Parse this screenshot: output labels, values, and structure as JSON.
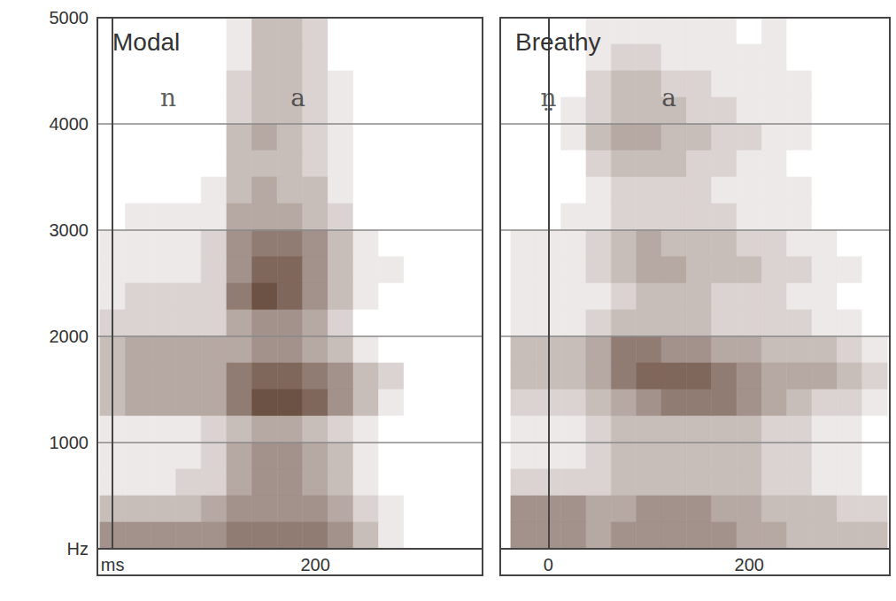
{
  "chart_data": [
    {
      "type": "spectrogram",
      "title": "Modal",
      "annotations": [
        {
          "text": "n",
          "x": 55,
          "y": 4250
        },
        {
          "text": "a",
          "x": 183,
          "y": 4250
        }
      ],
      "xlim": [
        -15,
        365
      ],
      "xticks": [
        {
          "value": 0,
          "label": "ms"
        },
        200
      ],
      "ylim": [
        0,
        5000
      ],
      "yticks": [
        {
          "value": 0,
          "label": "Hz"
        },
        1000,
        2000,
        3000,
        4000,
        5000
      ],
      "grid": true,
      "color": "#5a3b2e",
      "zlim": [
        0,
        9
      ],
      "spectrogram": {
        "time": [
          0,
          25,
          50,
          75,
          100,
          125,
          150,
          175,
          200,
          225,
          250,
          275,
          300,
          325,
          350
        ],
        "frequency": [
          4875,
          4625,
          4375,
          4125,
          3875,
          3625,
          3375,
          3125,
          2875,
          2625,
          2375,
          2125,
          1875,
          1625,
          1375,
          1125,
          875,
          625,
          375,
          125
        ],
        "intensity": [
          [
            0,
            0,
            0,
            0,
            0,
            1,
            3,
            3,
            2,
            0,
            0,
            0,
            0,
            0,
            0
          ],
          [
            0,
            0,
            0,
            0,
            0,
            1,
            3,
            3,
            2,
            0,
            0,
            0,
            0,
            0,
            0
          ],
          [
            0,
            0,
            0,
            0,
            0,
            2,
            3,
            3,
            2,
            1,
            0,
            0,
            0,
            0,
            0
          ],
          [
            0,
            0,
            0,
            0,
            0,
            2,
            3,
            3,
            2,
            1,
            0,
            0,
            0,
            0,
            0
          ],
          [
            0,
            0,
            0,
            0,
            0,
            3,
            4,
            3,
            2,
            1,
            0,
            0,
            0,
            0,
            0
          ],
          [
            0,
            0,
            0,
            0,
            0,
            3,
            3,
            3,
            2,
            1,
            0,
            0,
            0,
            0,
            0
          ],
          [
            0,
            0,
            0,
            0,
            1,
            3,
            4,
            3,
            3,
            1,
            0,
            0,
            0,
            0,
            0
          ],
          [
            0,
            1,
            1,
            1,
            1,
            4,
            4,
            4,
            3,
            2,
            0,
            0,
            0,
            0,
            0
          ],
          [
            1,
            1,
            1,
            1,
            2,
            5,
            6,
            6,
            5,
            3,
            1,
            0,
            0,
            0,
            0
          ],
          [
            1,
            1,
            1,
            1,
            2,
            5,
            7,
            7,
            5,
            3,
            1,
            1,
            0,
            0,
            0
          ],
          [
            1,
            2,
            2,
            2,
            2,
            6,
            8,
            7,
            5,
            3,
            1,
            0,
            0,
            0,
            0
          ],
          [
            2,
            2,
            2,
            2,
            2,
            4,
            5,
            5,
            4,
            2,
            0,
            0,
            0,
            0,
            0
          ],
          [
            3,
            4,
            4,
            4,
            4,
            4,
            5,
            5,
            4,
            3,
            1,
            0,
            0,
            0,
            0
          ],
          [
            3,
            4,
            4,
            4,
            4,
            6,
            7,
            7,
            6,
            5,
            3,
            2,
            0,
            0,
            0
          ],
          [
            3,
            4,
            4,
            4,
            4,
            6,
            8,
            8,
            7,
            5,
            3,
            1,
            0,
            0,
            0
          ],
          [
            1,
            1,
            1,
            1,
            2,
            3,
            4,
            4,
            3,
            2,
            1,
            0,
            0,
            0,
            0
          ],
          [
            1,
            1,
            1,
            1,
            2,
            4,
            5,
            5,
            4,
            3,
            1,
            0,
            0,
            0,
            0
          ],
          [
            1,
            1,
            1,
            2,
            2,
            4,
            5,
            5,
            4,
            3,
            1,
            0,
            0,
            0,
            0
          ],
          [
            3,
            3,
            3,
            3,
            4,
            5,
            5,
            5,
            5,
            4,
            2,
            1,
            0,
            0,
            0
          ],
          [
            5,
            5,
            5,
            5,
            5,
            6,
            6,
            6,
            6,
            5,
            3,
            1,
            0,
            0,
            0
          ]
        ]
      }
    },
    {
      "type": "spectrogram",
      "title": "Breathy",
      "annotations": [
        {
          "text": "n̤",
          "x": 0,
          "y": 4250
        },
        {
          "text": "a",
          "x": 120,
          "y": 4250
        }
      ],
      "xlim": [
        -48,
        340
      ],
      "xticks": [
        0,
        200
      ],
      "ylim": [
        0,
        5000
      ],
      "yticks": [
        {
          "value": 0,
          "label": "Hz"
        },
        1000,
        2000,
        3000,
        4000,
        5000
      ],
      "tick_labels": "x",
      "grid": true,
      "color": "#5a3b2e",
      "zlim": [
        0,
        9
      ],
      "spectrogram": {
        "time": [
          -25,
          0,
          25,
          50,
          75,
          100,
          125,
          150,
          175,
          200,
          225,
          250,
          275,
          300,
          325
        ],
        "frequency": [
          4875,
          4625,
          4375,
          4125,
          3875,
          3625,
          3375,
          3125,
          2875,
          2625,
          2375,
          2125,
          1875,
          1625,
          1375,
          1125,
          875,
          625,
          375,
          125
        ],
        "intensity": [
          [
            0,
            0,
            0,
            1,
            1,
            1,
            1,
            1,
            1,
            0,
            1,
            0,
            0,
            0,
            0
          ],
          [
            0,
            0,
            0,
            1,
            2,
            2,
            1,
            1,
            1,
            1,
            1,
            0,
            0,
            0,
            0
          ],
          [
            0,
            0,
            0,
            2,
            3,
            3,
            2,
            2,
            1,
            1,
            1,
            1,
            0,
            0,
            0
          ],
          [
            0,
            0,
            1,
            2,
            3,
            3,
            3,
            2,
            2,
            1,
            1,
            1,
            0,
            0,
            0
          ],
          [
            0,
            0,
            1,
            3,
            4,
            4,
            3,
            3,
            2,
            2,
            1,
            1,
            0,
            0,
            0
          ],
          [
            0,
            0,
            0,
            2,
            3,
            3,
            3,
            2,
            2,
            1,
            1,
            0,
            0,
            0,
            0
          ],
          [
            0,
            0,
            0,
            1,
            2,
            2,
            2,
            2,
            1,
            1,
            1,
            1,
            0,
            0,
            0
          ],
          [
            0,
            0,
            1,
            1,
            2,
            2,
            2,
            2,
            2,
            1,
            1,
            1,
            0,
            0,
            0
          ],
          [
            1,
            1,
            1,
            2,
            3,
            4,
            3,
            3,
            3,
            2,
            2,
            1,
            1,
            0,
            0
          ],
          [
            1,
            1,
            1,
            2,
            3,
            4,
            4,
            3,
            3,
            3,
            2,
            2,
            1,
            1,
            0
          ],
          [
            1,
            1,
            1,
            1,
            2,
            3,
            3,
            3,
            2,
            2,
            2,
            1,
            1,
            0,
            0
          ],
          [
            1,
            1,
            1,
            2,
            3,
            3,
            3,
            3,
            2,
            2,
            2,
            2,
            1,
            1,
            0
          ],
          [
            3,
            3,
            3,
            4,
            6,
            6,
            5,
            5,
            4,
            4,
            3,
            3,
            3,
            2,
            1
          ],
          [
            3,
            3,
            3,
            4,
            6,
            7,
            7,
            7,
            6,
            5,
            4,
            4,
            4,
            3,
            2
          ],
          [
            2,
            2,
            2,
            3,
            4,
            5,
            6,
            6,
            6,
            5,
            4,
            3,
            2,
            2,
            1
          ],
          [
            1,
            1,
            1,
            2,
            3,
            3,
            3,
            3,
            3,
            3,
            2,
            2,
            1,
            1,
            0
          ],
          [
            1,
            1,
            1,
            2,
            3,
            3,
            3,
            3,
            3,
            3,
            2,
            2,
            1,
            1,
            0
          ],
          [
            2,
            2,
            2,
            2,
            3,
            3,
            3,
            3,
            3,
            3,
            2,
            2,
            1,
            1,
            0
          ],
          [
            5,
            5,
            5,
            4,
            4,
            5,
            5,
            5,
            4,
            4,
            3,
            3,
            3,
            2,
            2
          ],
          [
            5,
            5,
            5,
            4,
            5,
            5,
            5,
            5,
            5,
            4,
            4,
            3,
            3,
            3,
            3
          ]
        ]
      }
    }
  ]
}
